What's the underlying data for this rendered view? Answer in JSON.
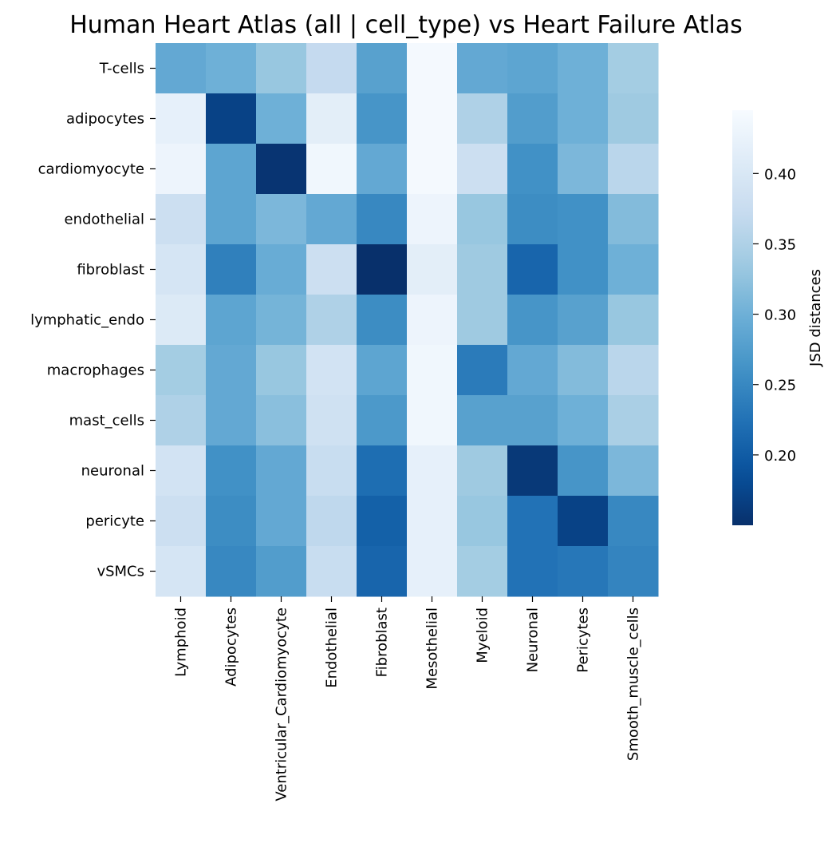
{
  "chart_data": {
    "type": "heatmap",
    "title": "Human Heart Atlas (all | cell_type) vs Heart Failure Atlas",
    "xlabel": "",
    "ylabel": "",
    "rows": [
      "T-cells",
      "adipocytes",
      "cardiomyocyte",
      "endothelial",
      "fibroblast",
      "lymphatic_endo",
      "macrophages",
      "mast_cells",
      "neuronal",
      "pericyte",
      "vSMCs"
    ],
    "columns": [
      "Lymphoid",
      "Adipocytes",
      "Ventricular_Cardiomyocyte",
      "Endothelial",
      "Fibroblast",
      "Mesothelial",
      "Myeloid",
      "Neuronal",
      "Pericytes",
      "Smooth_muscle_cells"
    ],
    "values": [
      [
        0.29,
        0.3,
        0.33,
        0.37,
        0.28,
        0.44,
        0.29,
        0.285,
        0.3,
        0.34
      ],
      [
        0.42,
        0.17,
        0.3,
        0.415,
        0.265,
        0.44,
        0.35,
        0.275,
        0.3,
        0.335
      ],
      [
        0.43,
        0.285,
        0.155,
        0.435,
        0.29,
        0.44,
        0.38,
        0.26,
        0.31,
        0.36
      ],
      [
        0.38,
        0.285,
        0.31,
        0.29,
        0.25,
        0.43,
        0.33,
        0.255,
        0.26,
        0.315
      ],
      [
        0.395,
        0.24,
        0.295,
        0.38,
        0.15,
        0.415,
        0.335,
        0.21,
        0.26,
        0.3
      ],
      [
        0.405,
        0.285,
        0.305,
        0.35,
        0.255,
        0.43,
        0.335,
        0.265,
        0.28,
        0.33
      ],
      [
        0.34,
        0.29,
        0.33,
        0.39,
        0.285,
        0.435,
        0.235,
        0.29,
        0.315,
        0.36
      ],
      [
        0.35,
        0.29,
        0.32,
        0.385,
        0.27,
        0.435,
        0.28,
        0.28,
        0.3,
        0.345
      ],
      [
        0.39,
        0.26,
        0.29,
        0.375,
        0.22,
        0.42,
        0.335,
        0.16,
        0.265,
        0.31
      ],
      [
        0.38,
        0.255,
        0.29,
        0.365,
        0.205,
        0.42,
        0.33,
        0.225,
        0.17,
        0.25
      ],
      [
        0.395,
        0.25,
        0.275,
        0.375,
        0.21,
        0.42,
        0.34,
        0.225,
        0.23,
        0.245
      ]
    ],
    "colormap": "Blues_r",
    "vmin": 0.15,
    "vmax": 0.445,
    "colorbar": {
      "label": "JSD distances",
      "ticks": [
        0.2,
        0.25,
        0.3,
        0.35,
        0.4
      ],
      "tick_labels": [
        "0.20",
        "0.25",
        "0.30",
        "0.35",
        "0.40"
      ]
    },
    "grid": false,
    "legend": "colorbar-right"
  }
}
